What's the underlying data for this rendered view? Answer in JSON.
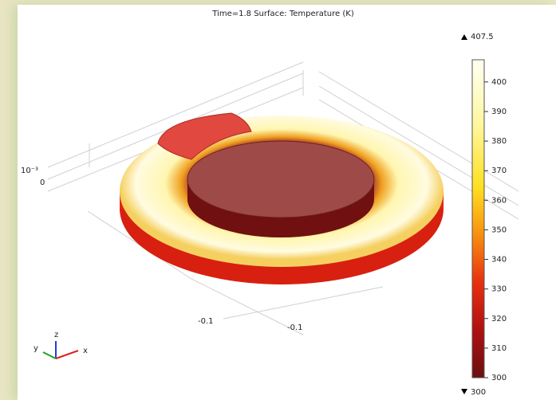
{
  "plot": {
    "title": "Time=1.8   Surface: Temperature (K)",
    "colorbar": {
      "max": 407.5,
      "min": 300,
      "ticks": [
        400,
        390,
        380,
        370,
        360,
        350,
        340,
        330,
        320,
        310,
        300
      ]
    },
    "axis_labels": {
      "z_exponent": "10⁻³",
      "z_zero": "0",
      "x_tick": "-0.1",
      "y_tick": "-0.1"
    },
    "triad": {
      "x": "x",
      "y": "y",
      "z": "z"
    }
  }
}
